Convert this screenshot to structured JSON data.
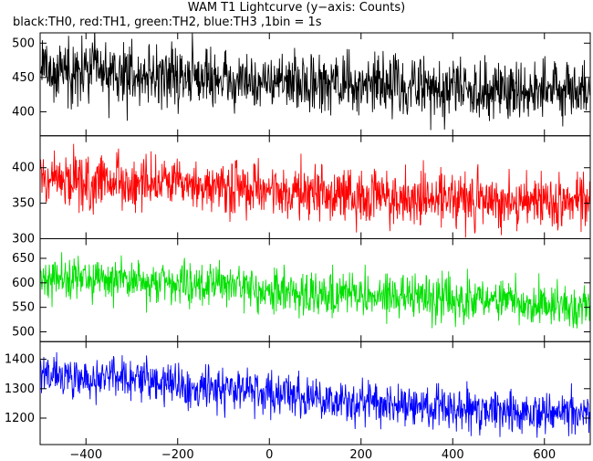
{
  "title": "WAM T1 Lightcurve (y−axis: Counts)",
  "subtitle": "black:TH0, red:TH1, green:TH2, blue:TH3 ,1bin = 1s",
  "chart_data": {
    "type": "line",
    "x_range": [
      -500,
      700
    ],
    "x_ticks": [
      -400,
      -200,
      0,
      200,
      400,
      600
    ],
    "x_tick_labels": [
      "−400",
      "−200",
      "0",
      "200",
      "400",
      "600"
    ],
    "bin_seconds": 1,
    "grid": false,
    "panels": [
      {
        "name": "TH0",
        "color": "#000000",
        "y_range": [
          365,
          515
        ],
        "y_ticks": [
          400,
          450,
          500
        ],
        "trend": [
          [
            -500,
            462
          ],
          [
            -300,
            455
          ],
          [
            -100,
            447
          ],
          [
            100,
            440
          ],
          [
            300,
            437
          ],
          [
            500,
            434
          ],
          [
            700,
            433
          ]
        ],
        "noise": 22
      },
      {
        "name": "TH1",
        "color": "#ff0000",
        "y_range": [
          300,
          445
        ],
        "y_ticks": [
          300,
          350,
          400
        ],
        "trend": [
          [
            -500,
            382
          ],
          [
            -300,
            378
          ],
          [
            -100,
            370
          ],
          [
            100,
            363
          ],
          [
            300,
            358
          ],
          [
            500,
            354
          ],
          [
            700,
            351
          ]
        ],
        "noise": 19
      },
      {
        "name": "TH2",
        "color": "#00e000",
        "y_range": [
          480,
          690
        ],
        "y_ticks": [
          500,
          550,
          600,
          650
        ],
        "trend": [
          [
            -500,
            612
          ],
          [
            -300,
            605
          ],
          [
            -100,
            592
          ],
          [
            100,
            578
          ],
          [
            300,
            570
          ],
          [
            500,
            562
          ],
          [
            700,
            555
          ]
        ],
        "noise": 22
      },
      {
        "name": "TH3",
        "color": "#0000ff",
        "y_range": [
          1110,
          1460
        ],
        "y_ticks": [
          1200,
          1300,
          1400
        ],
        "trend": [
          [
            -500,
            1345
          ],
          [
            -300,
            1330
          ],
          [
            -100,
            1305
          ],
          [
            100,
            1262
          ],
          [
            300,
            1243
          ],
          [
            500,
            1228
          ],
          [
            700,
            1210
          ]
        ],
        "noise": 36
      }
    ]
  }
}
